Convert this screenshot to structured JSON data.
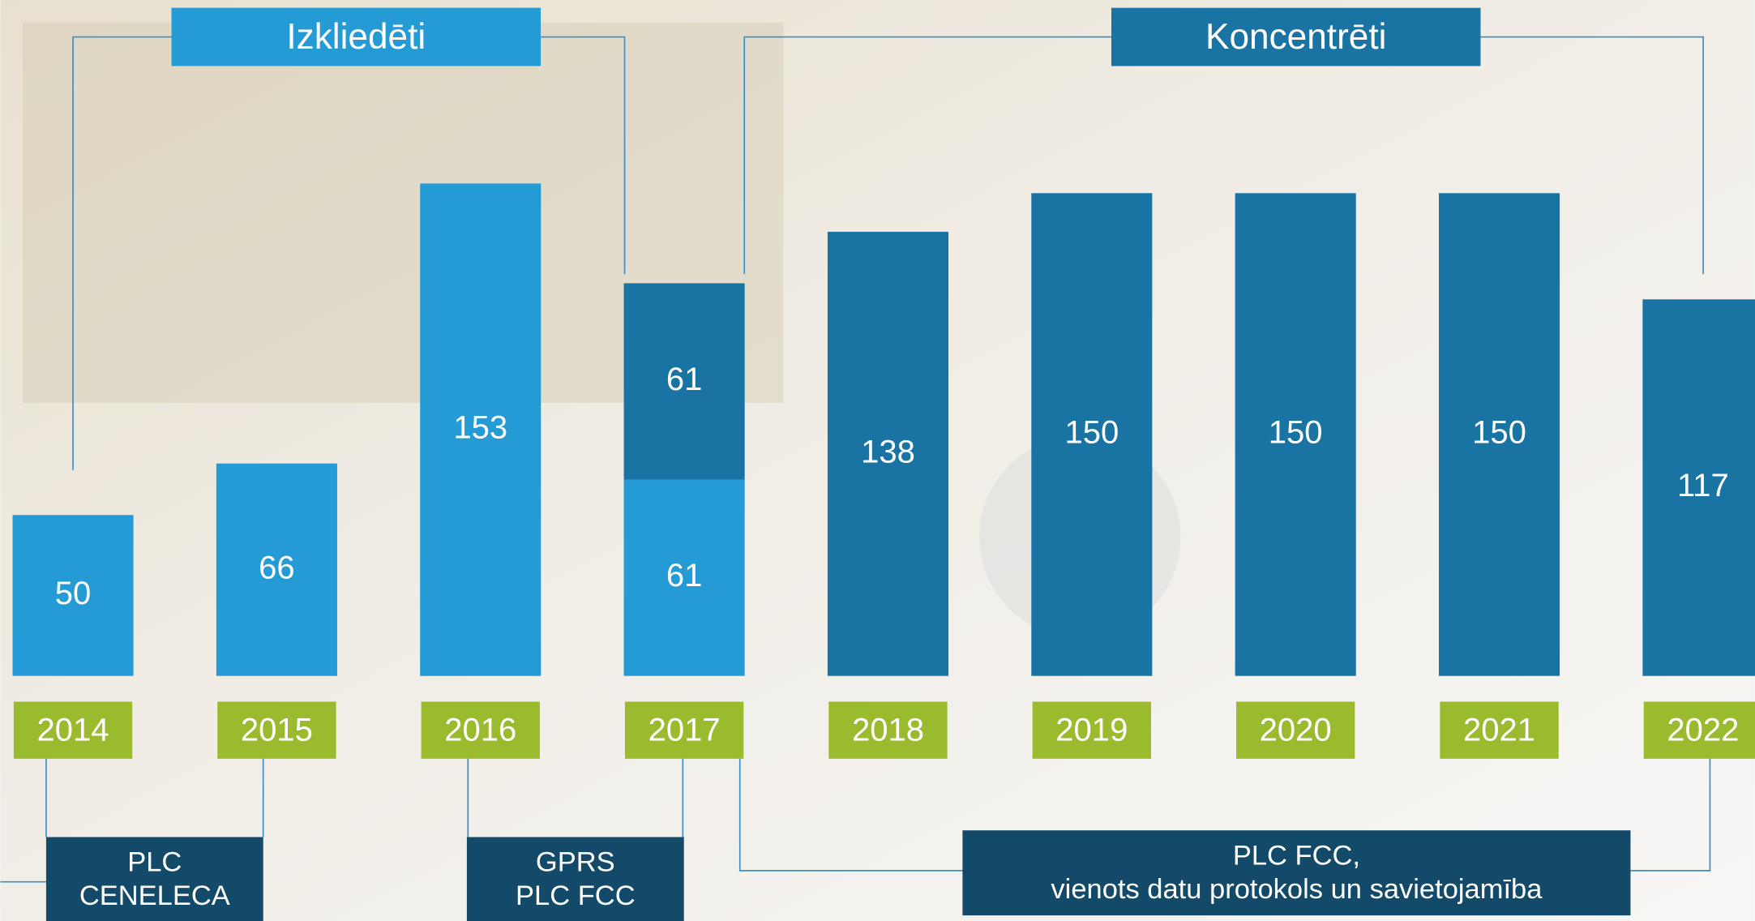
{
  "chart_data": {
    "type": "bar",
    "stacked": true,
    "categories": [
      "2014",
      "2015",
      "2016",
      "2017",
      "2018",
      "2019",
      "2020",
      "2021",
      "2022"
    ],
    "series": [
      {
        "name": "Izkliedēti",
        "color": "#259bd6",
        "values": [
          50,
          66,
          153,
          61,
          null,
          null,
          null,
          null,
          null
        ]
      },
      {
        "name": "Koncentrēti",
        "color": "#1a74a3",
        "values": [
          null,
          null,
          null,
          61,
          138,
          150,
          150,
          150,
          117
        ]
      }
    ],
    "category_color": "#9bbb2f",
    "annotations": [
      {
        "lines": [
          "PLC",
          "CENELECA"
        ]
      },
      {
        "lines": [
          "GPRS",
          "PLC FCC"
        ]
      },
      {
        "lines": [
          "PLC FCC,",
          "vienots datu protokols un savietojamība"
        ]
      }
    ]
  }
}
